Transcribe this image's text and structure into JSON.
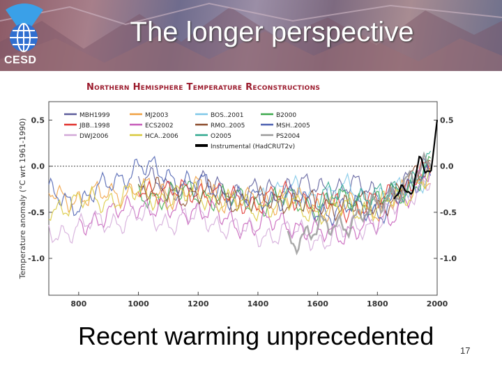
{
  "slide": {
    "title": "The longer perspective",
    "logo_text": "CESD",
    "subtitle": "Recent warming unprecedented",
    "page_number": "17",
    "colors": {
      "chart_title": "#9b1a2c",
      "logo": "#2f6fd0"
    }
  },
  "chart_data": {
    "type": "line",
    "title": "Northern Hemisphere Temperature Reconstructions",
    "ylabel": "Temperature anomaly  (°C wrt 1961-1990)",
    "xlabel": "",
    "xlim": [
      700,
      2000
    ],
    "ylim": [
      -1.4,
      0.7
    ],
    "xticks": [
      800,
      1000,
      1200,
      1400,
      1600,
      1800,
      2000
    ],
    "yticks": [
      -1.0,
      -0.5,
      0.0,
      0.5
    ],
    "ytick_labels": [
      "-1.0",
      "-0.5",
      "0.0",
      "0.5"
    ],
    "zero_line": "dotted",
    "legend_position": "top-left",
    "series": [
      {
        "name": "MBH1999",
        "color": "#5b5b9a",
        "x": [
          1000,
          1100,
          1200,
          1300,
          1400,
          1500,
          1600,
          1700,
          1800,
          1900,
          1980
        ],
        "y": [
          -0.1,
          -0.25,
          -0.2,
          -0.25,
          -0.3,
          -0.2,
          -0.25,
          -0.2,
          -0.3,
          -0.2,
          0.05
        ]
      },
      {
        "name": "MJ2003",
        "color": "#f0a040",
        "x": [
          700,
          800,
          900,
          1000,
          1100,
          1200,
          1300,
          1400,
          1500,
          1600,
          1700,
          1800,
          1900,
          1980
        ],
        "y": [
          -0.3,
          -0.35,
          -0.3,
          -0.25,
          -0.3,
          -0.25,
          -0.35,
          -0.4,
          -0.35,
          -0.45,
          -0.45,
          -0.45,
          -0.3,
          -0.05
        ]
      },
      {
        "name": "BOS..2001",
        "color": "#7ec7e8",
        "x": [
          1400,
          1500,
          1600,
          1700,
          1800,
          1900,
          1980
        ],
        "y": [
          -0.3,
          -0.25,
          -0.35,
          -0.25,
          -0.35,
          -0.25,
          -0.05
        ]
      },
      {
        "name": "B2000",
        "color": "#3aa84a",
        "x": [
          1000,
          1100,
          1200,
          1300,
          1400,
          1500,
          1600,
          1700,
          1800,
          1900,
          1980
        ],
        "y": [
          -0.35,
          -0.3,
          -0.3,
          -0.35,
          -0.4,
          -0.35,
          -0.45,
          -0.35,
          -0.4,
          -0.25,
          0.0
        ]
      },
      {
        "name": "JBB..1998",
        "color": "#e0302c",
        "x": [
          1000,
          1100,
          1200,
          1300,
          1400,
          1500,
          1600,
          1700,
          1800,
          1900,
          1980
        ],
        "y": [
          -0.2,
          -0.3,
          -0.25,
          -0.35,
          -0.4,
          -0.3,
          -0.4,
          -0.45,
          -0.4,
          -0.2,
          0.0
        ]
      },
      {
        "name": "ECS2002",
        "color": "#c65ab8",
        "x": [
          800,
          900,
          1000,
          1100,
          1200,
          1300,
          1400,
          1500,
          1600,
          1700,
          1800,
          1900,
          1980
        ],
        "y": [
          -0.6,
          -0.55,
          -0.4,
          -0.5,
          -0.45,
          -0.6,
          -0.65,
          -0.6,
          -0.75,
          -0.7,
          -0.65,
          -0.35,
          -0.05
        ]
      },
      {
        "name": "RMO..2005",
        "color": "#8a4a2a",
        "x": [
          1000,
          1100,
          1200,
          1300,
          1400,
          1500,
          1600,
          1700,
          1800,
          1900,
          1980
        ],
        "y": [
          -0.25,
          -0.3,
          -0.3,
          -0.35,
          -0.4,
          -0.35,
          -0.45,
          -0.4,
          -0.45,
          -0.2,
          0.0
        ]
      },
      {
        "name": "MSH..2005",
        "color": "#4a5fb0",
        "x": [
          700,
          800,
          900,
          1000,
          1100,
          1200,
          1300,
          1400,
          1500,
          1600,
          1700,
          1800,
          1900,
          1980
        ],
        "y": [
          -0.3,
          -0.4,
          -0.2,
          0.0,
          -0.1,
          -0.2,
          -0.3,
          -0.4,
          -0.3,
          -0.5,
          -0.45,
          -0.5,
          -0.3,
          0.0
        ]
      },
      {
        "name": "DWJ2006",
        "color": "#d2a8d8",
        "x": [
          700,
          800,
          900,
          1000,
          1100,
          1200,
          1300,
          1400,
          1500,
          1600,
          1700,
          1800,
          1900,
          1980
        ],
        "y": [
          -0.75,
          -0.65,
          -0.6,
          -0.55,
          -0.6,
          -0.55,
          -0.65,
          -0.75,
          -0.7,
          -0.8,
          -0.7,
          -0.6,
          -0.35,
          -0.1
        ]
      },
      {
        "name": "HCA..2006",
        "color": "#d8c83a",
        "x": [
          700,
          800,
          900,
          1000,
          1100,
          1200,
          1300,
          1400,
          1500,
          1600,
          1700,
          1800,
          1900,
          1980
        ],
        "y": [
          -0.45,
          -0.4,
          -0.35,
          -0.3,
          -0.35,
          -0.3,
          -0.4,
          -0.45,
          -0.4,
          -0.5,
          -0.45,
          -0.45,
          -0.3,
          -0.05
        ]
      },
      {
        "name": "O2005",
        "color": "#2ea88e",
        "x": [
          1600,
          1700,
          1800,
          1900,
          1980
        ],
        "y": [
          -0.35,
          -0.3,
          -0.35,
          -0.2,
          0.05
        ]
      },
      {
        "name": "PS2004",
        "color": "#9a9a9a",
        "x": [
          1500,
          1600,
          1700,
          1800,
          1900,
          1980
        ],
        "y": [
          -0.8,
          -0.7,
          -0.6,
          -0.45,
          -0.15,
          0.0
        ]
      },
      {
        "name": "Instrumental (HadCRUT2v)",
        "color": "#000000",
        "x": [
          1856,
          1880,
          1900,
          1920,
          1940,
          1960,
          1980,
          1990,
          2000
        ],
        "y": [
          -0.3,
          -0.25,
          -0.3,
          -0.25,
          0.05,
          -0.05,
          0.0,
          0.2,
          0.5
        ]
      }
    ]
  }
}
